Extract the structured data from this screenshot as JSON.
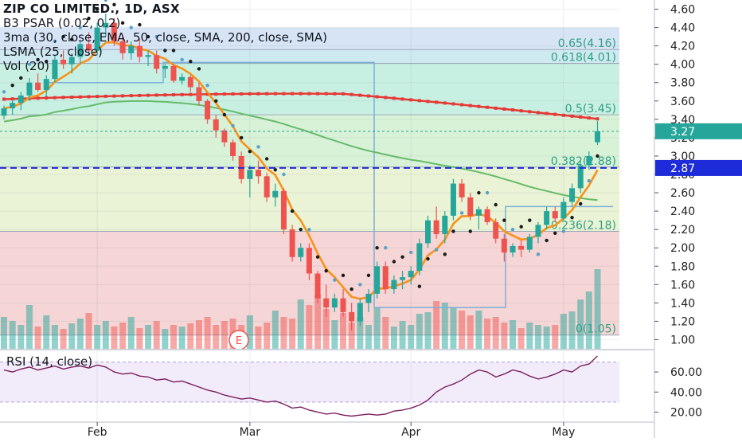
{
  "legend": {
    "title": "ZIP CO LIMITED., 1D, ASX",
    "psar": "B3 PSAR (0.02, 0.2)",
    "ma3": "3ma (30, close, EMA, 50, close, SMA, 200, close, SMA)",
    "lsma": "LSMA (25, close)",
    "vol": "Vol (20)"
  },
  "rsi_legend": "RSI (14, close)",
  "colors": {
    "up": "#26a69a",
    "down": "#ef5350",
    "psar": "#1a1a1a",
    "ema30": "#f7931a",
    "sma50": "#66bb6a",
    "sma200": "#e53935",
    "lsma": "#7ab0d8",
    "rsi": "#7b1f5e",
    "price_tag": "#26a69a",
    "level_tag": "#1e2bd8"
  },
  "event_marker": "E",
  "chart_data": {
    "type": "candlestick",
    "price_axis": {
      "ylim": [
        0.9,
        4.7
      ],
      "ticks": [
        "1.00",
        "1.20",
        "1.40",
        "1.60",
        "1.80",
        "2.00",
        "2.20",
        "2.40",
        "2.60",
        "2.80",
        "3.00",
        "3.20",
        "3.40",
        "3.60",
        "3.80",
        "4.00",
        "4.20",
        "4.40",
        "4.60"
      ]
    },
    "x_labels": [
      {
        "label": "Feb",
        "index": 11
      },
      {
        "label": "Mar",
        "index": 29
      },
      {
        "label": "Apr",
        "index": 48
      },
      {
        "label": "May",
        "index": 66
      }
    ],
    "current_price": "3.27",
    "level_line": "2.87",
    "fib_levels": [
      {
        "label": "0.65(4.16)",
        "value": 4.16
      },
      {
        "label": "0.618(4.01)",
        "value": 4.01
      },
      {
        "label": "0.5(3.45)",
        "value": 3.45
      },
      {
        "label": "0.382(2.88)",
        "value": 2.88
      },
      {
        "label": "0.236(2.18)",
        "value": 2.18
      },
      {
        "label": "0(1.05)",
        "value": 1.05
      }
    ],
    "fib_zones": [
      {
        "from": 4.16,
        "to": 4.4,
        "color": "#d6e4f5"
      },
      {
        "from": 4.01,
        "to": 4.16,
        "color": "#cfe9f0"
      },
      {
        "from": 3.45,
        "to": 4.01,
        "color": "#c8f0e2"
      },
      {
        "from": 2.88,
        "to": 3.45,
        "color": "#d8f2d8"
      },
      {
        "from": 2.18,
        "to": 2.88,
        "color": "#eaf3d5"
      },
      {
        "from": 1.05,
        "to": 2.18,
        "color": "#f5d5d5"
      }
    ],
    "candles": [
      [
        3.44,
        3.55,
        3.4,
        3.52
      ],
      [
        3.52,
        3.62,
        3.45,
        3.58
      ],
      [
        3.58,
        3.7,
        3.5,
        3.66
      ],
      [
        3.66,
        3.85,
        3.6,
        3.8
      ],
      [
        3.8,
        3.9,
        3.7,
        3.72
      ],
      [
        3.72,
        3.88,
        3.65,
        3.84
      ],
      [
        3.84,
        4.1,
        3.8,
        4.05
      ],
      [
        4.05,
        4.15,
        3.95,
        4.0
      ],
      [
        4.0,
        4.12,
        3.9,
        4.08
      ],
      [
        4.08,
        4.25,
        4.0,
        4.22
      ],
      [
        4.22,
        4.35,
        4.1,
        4.15
      ],
      [
        4.15,
        4.45,
        4.1,
        4.4
      ],
      [
        4.4,
        4.55,
        4.3,
        4.45
      ],
      [
        4.45,
        4.5,
        4.2,
        4.25
      ],
      [
        4.25,
        4.3,
        4.05,
        4.12
      ],
      [
        4.12,
        4.25,
        4.05,
        4.2
      ],
      [
        4.2,
        4.28,
        4.02,
        4.08
      ],
      [
        4.08,
        4.15,
        3.98,
        4.1
      ],
      [
        4.1,
        4.15,
        3.9,
        3.95
      ],
      [
        3.95,
        4.0,
        3.85,
        3.98
      ],
      [
        3.98,
        4.0,
        3.8,
        3.82
      ],
      [
        3.82,
        3.9,
        3.78,
        3.86
      ],
      [
        3.86,
        3.88,
        3.7,
        3.75
      ],
      [
        3.75,
        3.8,
        3.55,
        3.6
      ],
      [
        3.6,
        3.62,
        3.35,
        3.4
      ],
      [
        3.4,
        3.45,
        3.2,
        3.28
      ],
      [
        3.28,
        3.3,
        3.1,
        3.15
      ],
      [
        3.15,
        3.18,
        2.95,
        3.0
      ],
      [
        3.0,
        3.05,
        2.7,
        2.75
      ],
      [
        2.75,
        2.9,
        2.55,
        2.85
      ],
      [
        2.85,
        2.95,
        2.7,
        2.78
      ],
      [
        2.78,
        2.82,
        2.5,
        2.55
      ],
      [
        2.55,
        2.7,
        2.45,
        2.62
      ],
      [
        2.62,
        2.65,
        2.15,
        2.2
      ],
      [
        2.2,
        2.25,
        1.85,
        1.9
      ],
      [
        1.9,
        2.05,
        1.85,
        2.0
      ],
      [
        2.0,
        2.05,
        1.65,
        1.72
      ],
      [
        1.72,
        1.75,
        1.4,
        1.45
      ],
      [
        1.45,
        1.6,
        1.25,
        1.35
      ],
      [
        1.35,
        1.5,
        1.3,
        1.45
      ],
      [
        1.45,
        1.55,
        1.25,
        1.3
      ],
      [
        1.3,
        1.4,
        1.1,
        1.2
      ],
      [
        1.2,
        1.45,
        1.15,
        1.4
      ],
      [
        1.4,
        1.55,
        1.3,
        1.5
      ],
      [
        1.5,
        1.85,
        1.45,
        1.8
      ],
      [
        1.8,
        1.85,
        1.5,
        1.55
      ],
      [
        1.55,
        1.7,
        1.5,
        1.65
      ],
      [
        1.65,
        1.75,
        1.55,
        1.68
      ],
      [
        1.68,
        1.8,
        1.6,
        1.75
      ],
      [
        1.75,
        2.1,
        1.7,
        2.05
      ],
      [
        2.05,
        2.35,
        2.0,
        2.3
      ],
      [
        2.3,
        2.45,
        2.1,
        2.15
      ],
      [
        2.15,
        2.4,
        2.05,
        2.35
      ],
      [
        2.35,
        2.75,
        2.3,
        2.7
      ],
      [
        2.7,
        2.75,
        2.5,
        2.55
      ],
      [
        2.55,
        2.6,
        2.3,
        2.35
      ],
      [
        2.35,
        2.45,
        2.2,
        2.42
      ],
      [
        2.42,
        2.45,
        2.25,
        2.28
      ],
      [
        2.28,
        2.32,
        2.05,
        2.1
      ],
      [
        2.1,
        2.15,
        1.85,
        1.95
      ],
      [
        1.95,
        2.05,
        1.9,
        2.02
      ],
      [
        2.02,
        2.08,
        1.9,
        1.98
      ],
      [
        1.98,
        2.15,
        1.95,
        2.12
      ],
      [
        2.12,
        2.28,
        2.05,
        2.25
      ],
      [
        2.25,
        2.45,
        2.2,
        2.4
      ],
      [
        2.4,
        2.45,
        2.28,
        2.32
      ],
      [
        2.32,
        2.55,
        2.3,
        2.5
      ],
      [
        2.5,
        2.7,
        2.45,
        2.65
      ],
      [
        2.65,
        2.95,
        2.6,
        2.9
      ],
      [
        2.9,
        3.05,
        2.85,
        3.0
      ],
      [
        3.15,
        3.38,
        3.12,
        3.27
      ]
    ],
    "volume": [
      40,
      35,
      30,
      55,
      28,
      42,
      30,
      25,
      32,
      38,
      45,
      30,
      35,
      28,
      33,
      40,
      26,
      30,
      35,
      25,
      30,
      28,
      32,
      36,
      40,
      30,
      35,
      38,
      30,
      42,
      28,
      33,
      48,
      40,
      38,
      62,
      55,
      68,
      50,
      36,
      45,
      33,
      40,
      30,
      52,
      40,
      28,
      35,
      30,
      44,
      46,
      60,
      58,
      52,
      48,
      42,
      48,
      38,
      40,
      33,
      36,
      26,
      33,
      30,
      28,
      30,
      44,
      47,
      62,
      72,
      100
    ],
    "rsi": {
      "ticks": [
        "20.00",
        "40.00",
        "60.00"
      ],
      "ylim": [
        10,
        80
      ],
      "values": [
        62,
        60,
        63,
        65,
        62,
        64,
        66,
        63,
        65,
        66,
        64,
        67,
        65,
        60,
        58,
        59,
        56,
        55,
        52,
        53,
        50,
        51,
        48,
        45,
        42,
        40,
        37,
        35,
        33,
        34,
        32,
        30,
        31,
        28,
        24,
        25,
        22,
        20,
        18,
        19,
        17,
        16,
        17,
        18,
        17,
        18,
        21,
        22,
        24,
        27,
        32,
        40,
        45,
        48,
        52,
        58,
        62,
        60,
        55,
        58,
        62,
        60,
        56,
        53,
        55,
        58,
        62,
        60,
        66,
        68,
        76
      ]
    }
  }
}
